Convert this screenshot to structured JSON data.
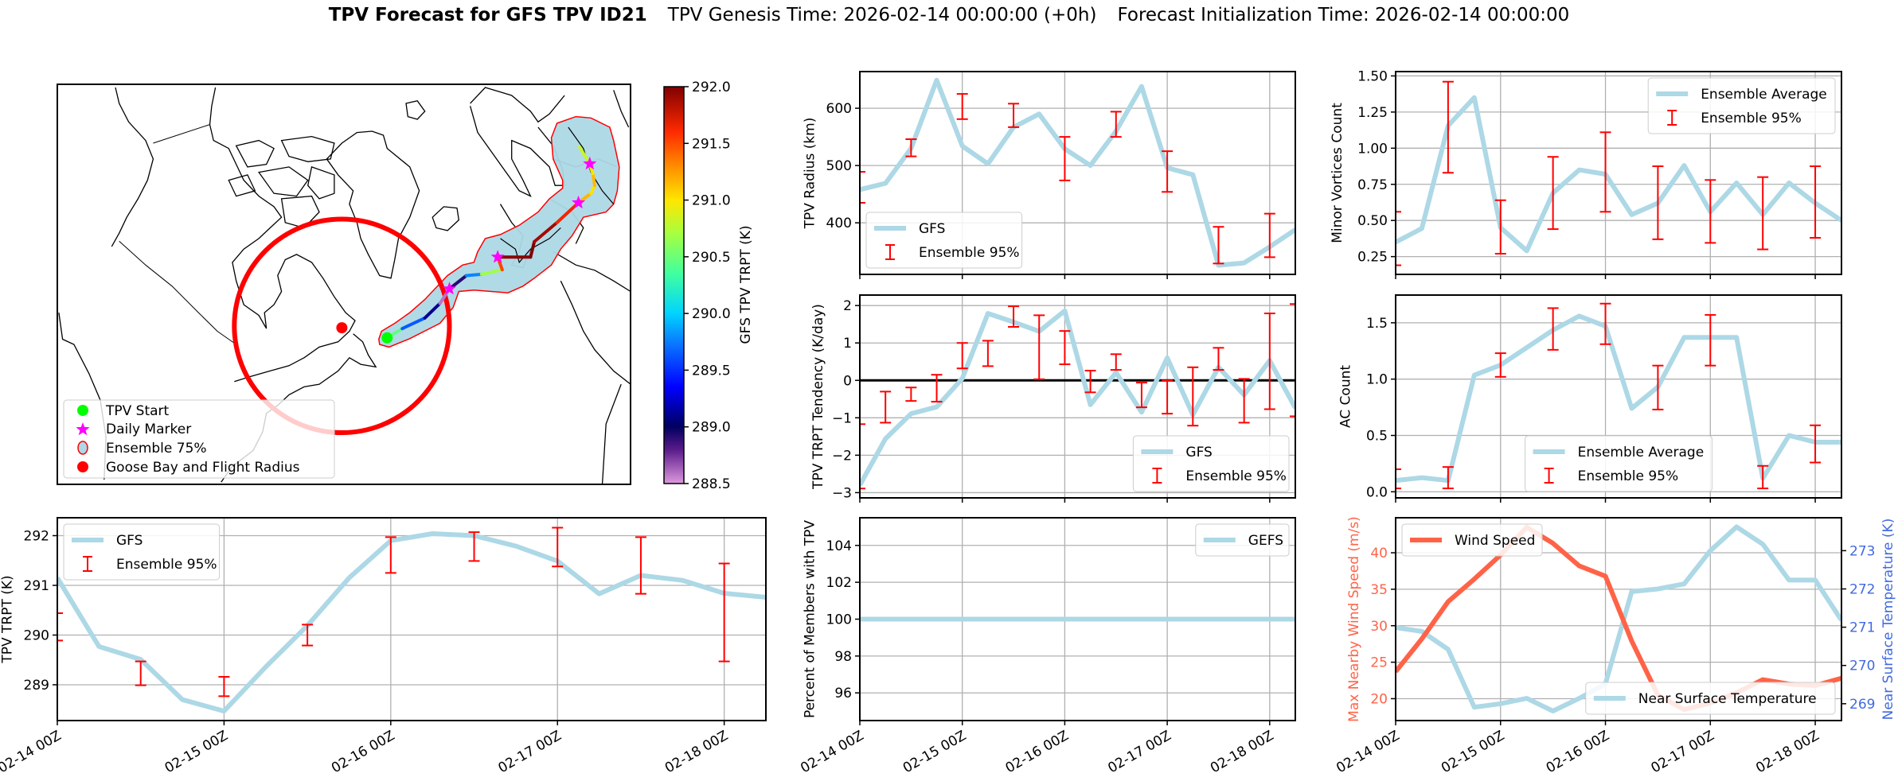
{
  "title": {
    "bold": "TPV Forecast for GFS TPV ID21",
    "genesis": "TPV Genesis Time: 2026-02-14 00:00:00 (+0h)",
    "init": "Forecast Initialization Time: 2026-02-14 00:00:00"
  },
  "colors": {
    "series_blue": "#add8e6",
    "errorbar_red": "#ff0000",
    "wind": "#ff6347",
    "temp_axis": "#4169e1",
    "grid": "#b0b0b0",
    "start_green": "#00ff00",
    "daily_marker": "#ff00ff",
    "goose_bay": "#ff0000"
  },
  "map": {
    "legend": [
      {
        "label": "TPV Start",
        "marker": "green-circle"
      },
      {
        "label": "Daily Marker",
        "marker": "magenta-star"
      },
      {
        "label": "Ensemble 75%",
        "marker": "lightblue-circle-red-edge"
      },
      {
        "label": "Goose Bay and Flight Radius",
        "marker": "red-circle"
      }
    ],
    "colorbar": {
      "label": "GFS TPV TRPT (K)",
      "range": [
        288.5,
        292.0
      ],
      "ticks": [
        "288.5",
        "289.0",
        "289.5",
        "290.0",
        "290.5",
        "291.0",
        "291.5",
        "292.0"
      ]
    }
  },
  "time_axis": {
    "x_hours": [
      0,
      6,
      12,
      18,
      24,
      30,
      36,
      42,
      48,
      54,
      60,
      66,
      72,
      78,
      84,
      90,
      96,
      102
    ],
    "xlim": [
      0,
      102
    ],
    "tick_hours": [
      0,
      24,
      48,
      72,
      96
    ],
    "tick_labels": [
      "02-14 00Z",
      "02-15 00Z",
      "02-16 00Z",
      "02-17 00Z",
      "02-18 00Z"
    ]
  },
  "chart_data": [
    {
      "id": "tpv-radius",
      "type": "line",
      "ylabel": "TPV Radius (km)",
      "ylim": [
        310,
        664
      ],
      "yticks": [
        400,
        500,
        600
      ],
      "ytick_labels": [
        "400",
        "500",
        "600"
      ],
      "grid": true,
      "legend_loc": "lower left",
      "series": [
        {
          "name": "GFS",
          "values": [
            458,
            469,
            530,
            649,
            534,
            503,
            567,
            590,
            529,
            500,
            560,
            638,
            496,
            484,
            326,
            330,
            358,
            388
          ]
        }
      ],
      "errorbars": {
        "name": "Ensemble 95%",
        "x": [
          0,
          12,
          24,
          36,
          48,
          60,
          72,
          84,
          96
        ],
        "high": [
          489,
          546,
          625,
          608,
          550,
          594,
          525,
          393,
          416
        ],
        "low": [
          435,
          516,
          581,
          567,
          474,
          550,
          454,
          329,
          340
        ]
      }
    },
    {
      "id": "tpv-trpt-tendency",
      "type": "line",
      "ylabel": "TPV TRPT Tendency (K/day)",
      "ylim": [
        -3.14,
        2.28
      ],
      "yticks": [
        -3,
        -2,
        -1,
        0,
        1,
        2
      ],
      "ytick_labels": [
        "−3",
        "−2",
        "−1",
        "0",
        "1",
        "2"
      ],
      "grid": true,
      "zero_line": true,
      "legend_loc": "lower right",
      "series": [
        {
          "name": "GFS",
          "values": [
            -2.8,
            -1.56,
            -0.89,
            -0.71,
            0.05,
            1.79,
            1.56,
            1.31,
            1.86,
            -0.65,
            0.21,
            -0.85,
            0.6,
            -0.92,
            0.35,
            -0.39,
            0.53,
            -0.74
          ]
        }
      ],
      "errorbars": {
        "name": "Ensemble 95%",
        "x": [
          0,
          6,
          12,
          18,
          24,
          30,
          36,
          42,
          48,
          54,
          60,
          66,
          72,
          78,
          84,
          90,
          96,
          102
        ],
        "high": [
          -1.17,
          -0.3,
          -0.19,
          0.15,
          1.0,
          1.06,
          1.98,
          1.74,
          1.32,
          0.26,
          0.7,
          -0.06,
          0,
          0.35,
          0.87,
          0.04,
          1.79,
          2.04
        ],
        "low": [
          -2.89,
          -1.13,
          -0.55,
          -0.57,
          0.32,
          0.38,
          1.43,
          0.03,
          0.43,
          -0.32,
          0.28,
          -0.72,
          -0.89,
          -1.21,
          0.28,
          -1.13,
          -0.77,
          -0.96
        ]
      }
    },
    {
      "id": "percent-members",
      "type": "line",
      "ylabel": "Percent of Members with TPV",
      "ylim": [
        94.5,
        105.5
      ],
      "yticks": [
        96,
        98,
        100,
        102,
        104
      ],
      "ytick_labels": [
        "96",
        "98",
        "100",
        "102",
        "104"
      ],
      "grid": true,
      "legend_loc": "upper right",
      "series": [
        {
          "name": "GEFS",
          "values": [
            100,
            100,
            100,
            100,
            100,
            100,
            100,
            100,
            100,
            100,
            100,
            100,
            100,
            100,
            100,
            100,
            100,
            100
          ]
        }
      ]
    },
    {
      "id": "minor-vortices",
      "type": "line",
      "ylabel": "Minor Vortices Count",
      "ylim": [
        0.127,
        1.53
      ],
      "yticks": [
        0.25,
        0.5,
        0.75,
        1.0,
        1.25,
        1.5
      ],
      "ytick_labels": [
        "0.25",
        "0.50",
        "0.75",
        "1.00",
        "1.25",
        "1.50"
      ],
      "grid": true,
      "legend_loc": "upper right",
      "series": [
        {
          "name": "Ensemble Average",
          "values": [
            0.35,
            0.445,
            1.156,
            1.35,
            0.45,
            0.29,
            0.69,
            0.85,
            0.82,
            0.54,
            0.62,
            0.88,
            0.56,
            0.76,
            0.54,
            0.76,
            0.62,
            0.5
          ]
        }
      ],
      "errorbars": {
        "name": "Ensemble 95%",
        "x": [
          0,
          12,
          24,
          36,
          48,
          60,
          72,
          84,
          96
        ],
        "high": [
          0.56,
          1.46,
          0.64,
          0.94,
          1.11,
          0.875,
          0.78,
          0.8,
          0.875
        ],
        "low": [
          0.19,
          0.83,
          0.27,
          0.44,
          0.56,
          0.37,
          0.345,
          0.3,
          0.38
        ]
      }
    },
    {
      "id": "ac-count",
      "type": "line",
      "ylabel": "AC Count",
      "ylim": [
        -0.054,
        1.746
      ],
      "yticks": [
        0,
        0.5,
        1,
        1.5
      ],
      "ytick_labels": [
        "0.0",
        "0.5",
        "1.0",
        "1.5"
      ],
      "grid": true,
      "legend_loc": "lower center",
      "series": [
        {
          "name": "Ensemble Average",
          "values": [
            0.1,
            0.125,
            0.1,
            1.035,
            1.125,
            1.28,
            1.435,
            1.56,
            1.47,
            0.74,
            0.93,
            1.37,
            1.37,
            1.37,
            0.12,
            0.5,
            0.44,
            0.44
          ]
        }
      ],
      "errorbars": {
        "name": "Ensemble 95%",
        "x": [
          0,
          12,
          24,
          36,
          48,
          60,
          72,
          84,
          96
        ],
        "high": [
          0.2,
          0.22,
          1.23,
          1.63,
          1.67,
          1.12,
          1.57,
          0.23,
          0.59
        ],
        "low": [
          0.03,
          0.03,
          1.02,
          1.26,
          1.31,
          0.73,
          1.12,
          0.03,
          0.26
        ]
      }
    },
    {
      "id": "wind-temperature",
      "type": "line",
      "ylabel": "Max Nearby Wind Speed (m/s)",
      "ylim": [
        17.0,
        44.8
      ],
      "yticks": [
        20,
        25,
        30,
        35,
        40
      ],
      "ytick_labels": [
        "20",
        "25",
        "30",
        "35",
        "40"
      ],
      "grid": true,
      "legend_loc": "upper left",
      "series": [
        {
          "name": "Wind Speed",
          "values": [
            23.7,
            28.2,
            33.3,
            36.4,
            39.7,
            43.5,
            41.3,
            38.2,
            36.8,
            27.9,
            20.5,
            18.5,
            19.4,
            20.8,
            22.6,
            22.0,
            21.8,
            22.8
          ]
        }
      ],
      "secondary": {
        "ylabel": "Near Surface Temperature (K)",
        "ylim": [
          268.56,
          273.86
        ],
        "yticks": [
          269,
          270,
          271,
          272,
          273
        ],
        "ytick_labels": [
          "269",
          "270",
          "271",
          "272",
          "273"
        ],
        "legend_loc": "lower right",
        "series": [
          {
            "name": "Near Surface Temperature",
            "values": [
              270.99,
              270.89,
              270.42,
              268.91,
              269.0,
              269.14,
              268.81,
              269.14,
              269.52,
              271.93,
              272.0,
              272.13,
              273.0,
              273.62,
              273.17,
              272.23,
              272.23,
              271.18
            ]
          }
        ]
      }
    },
    {
      "id": "tpv-trpt",
      "type": "line",
      "ylabel": "TPV TRPT (K)",
      "ylim": [
        288.28,
        292.36
      ],
      "yticks": [
        289,
        290,
        291,
        292
      ],
      "ytick_labels": [
        "289",
        "290",
        "291",
        "292"
      ],
      "grid": true,
      "legend_loc": "upper left",
      "series": [
        {
          "name": "GFS",
          "values": [
            291.15,
            289.77,
            289.51,
            288.7,
            288.47,
            289.36,
            290.19,
            291.15,
            291.9,
            292.04,
            292.0,
            291.79,
            291.49,
            290.83,
            291.2,
            291.1,
            290.84,
            290.76
          ]
        }
      ],
      "errorbars": {
        "name": "Ensemble 95%",
        "x": [
          0,
          12,
          24,
          36,
          48,
          60,
          72,
          84,
          96
        ],
        "high": [
          290.44,
          289.47,
          289.16,
          290.21,
          291.97,
          292.07,
          292.16,
          291.97,
          291.44
        ],
        "low": [
          289.89,
          288.99,
          288.77,
          289.79,
          291.25,
          291.49,
          291.38,
          290.83,
          289.47
        ]
      }
    }
  ]
}
